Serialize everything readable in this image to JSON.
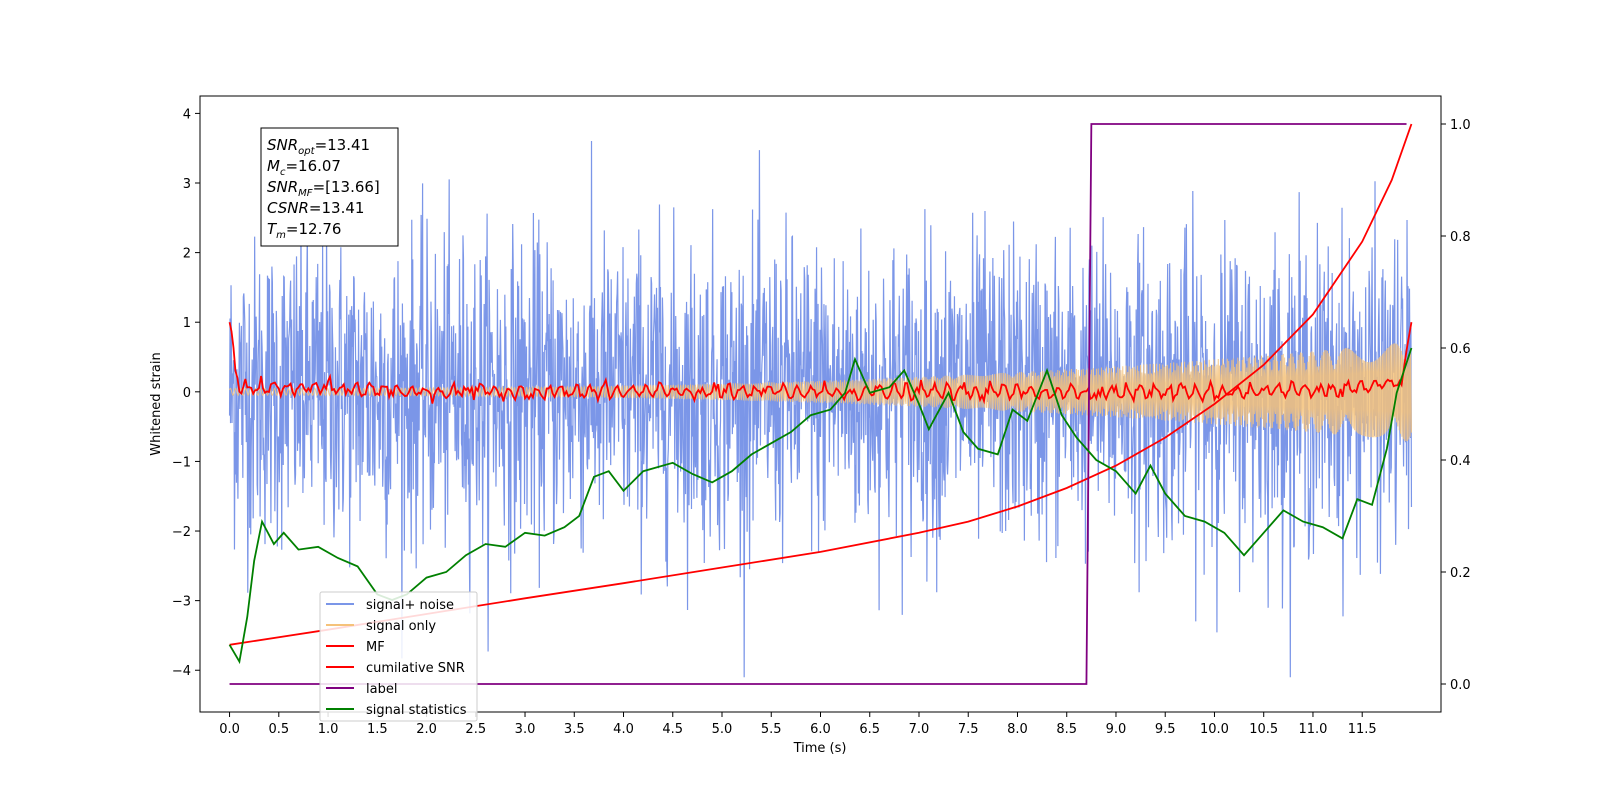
{
  "chart_data": {
    "type": "line",
    "xlabel": "Time (s)",
    "ylabel": "Whitened strain",
    "xlim": [
      -0.3,
      12.3
    ],
    "ylim": [
      -4.6,
      4.25
    ],
    "y2lim": [
      -0.05,
      1.05
    ],
    "x_ticks": [
      "0.0",
      "0.5",
      "1.0",
      "1.5",
      "2.0",
      "2.5",
      "3.0",
      "3.5",
      "4.0",
      "4.5",
      "5.0",
      "5.5",
      "6.0",
      "6.5",
      "7.0",
      "7.5",
      "8.0",
      "8.5",
      "9.0",
      "9.5",
      "10.0",
      "10.5",
      "11.0",
      "11.5"
    ],
    "y_ticks": [
      "4",
      "3",
      "2",
      "1",
      "0",
      "−1",
      "−2",
      "−3",
      "−4"
    ],
    "y2_ticks": [
      "1.0",
      "0.8",
      "0.6",
      "0.4",
      "0.2",
      "0.0"
    ],
    "annotations": [
      {
        "sym": "SNR",
        "sub": "opt",
        "val": "=13.41"
      },
      {
        "sym": "M",
        "sub": "c",
        "val": "=16.07"
      },
      {
        "sym": "SNR",
        "sub": "MF",
        "val": "=[13.66]"
      },
      {
        "sym": "CSNR",
        "sub": "",
        "val": "=13.41"
      },
      {
        "sym": "T",
        "sub": "m",
        "val": "=12.76"
      }
    ],
    "legend_position": "lower-left",
    "series": [
      {
        "name": "signal+ noise",
        "color": "#7b96e8",
        "axis": "left",
        "style": "noise",
        "amplitude": 1.1,
        "x_range": [
          0,
          12.0
        ]
      },
      {
        "name": "signal only",
        "color": "#f5c27a",
        "axis": "left",
        "style": "chirp",
        "amplitude_start": 0.05,
        "amplitude_end": 0.72,
        "x_range": [
          0,
          12.0
        ]
      },
      {
        "name": "MF",
        "color": "#ff0000",
        "axis": "left",
        "style": "matched-filter",
        "points": [
          [
            0.0,
            1.0
          ],
          [
            0.03,
            0.8
          ],
          [
            0.06,
            0.3
          ],
          [
            0.1,
            0.1
          ],
          [
            0.2,
            0.05
          ],
          [
            0.5,
            0.05
          ],
          [
            1.0,
            0.05
          ],
          [
            2.0,
            0.0
          ],
          [
            4.0,
            0.0
          ],
          [
            6.0,
            0.0
          ],
          [
            8.0,
            0.0
          ],
          [
            10.0,
            0.0
          ],
          [
            11.5,
            0.05
          ],
          [
            11.9,
            0.1
          ],
          [
            11.95,
            0.6
          ],
          [
            12.0,
            1.0
          ]
        ]
      },
      {
        "name": "cumilative SNR",
        "color": "#ff0000",
        "axis": "right",
        "points": [
          [
            0.0,
            0.07
          ],
          [
            1.0,
            0.097
          ],
          [
            2.0,
            0.125
          ],
          [
            3.0,
            0.153
          ],
          [
            4.0,
            0.18
          ],
          [
            5.0,
            0.208
          ],
          [
            6.0,
            0.236
          ],
          [
            7.0,
            0.27
          ],
          [
            7.5,
            0.29
          ],
          [
            8.0,
            0.317
          ],
          [
            8.5,
            0.35
          ],
          [
            9.0,
            0.39
          ],
          [
            9.5,
            0.44
          ],
          [
            10.0,
            0.5
          ],
          [
            10.5,
            0.57
          ],
          [
            11.0,
            0.66
          ],
          [
            11.5,
            0.79
          ],
          [
            11.8,
            0.9
          ],
          [
            12.0,
            1.0
          ]
        ]
      },
      {
        "name": "label",
        "color": "#800080",
        "axis": "right",
        "points": [
          [
            0.0,
            0.0
          ],
          [
            8.7,
            0.0
          ],
          [
            8.75,
            1.0
          ],
          [
            11.95,
            1.0
          ]
        ]
      },
      {
        "name": "signal statistics",
        "color": "#008000",
        "axis": "right",
        "points": [
          [
            0.0,
            0.07
          ],
          [
            0.1,
            0.04
          ],
          [
            0.18,
            0.12
          ],
          [
            0.25,
            0.22
          ],
          [
            0.33,
            0.29
          ],
          [
            0.45,
            0.25
          ],
          [
            0.55,
            0.27
          ],
          [
            0.7,
            0.24
          ],
          [
            0.9,
            0.245
          ],
          [
            1.1,
            0.225
          ],
          [
            1.3,
            0.21
          ],
          [
            1.5,
            0.16
          ],
          [
            1.65,
            0.15
          ],
          [
            1.8,
            0.16
          ],
          [
            2.0,
            0.19
          ],
          [
            2.2,
            0.2
          ],
          [
            2.4,
            0.23
          ],
          [
            2.6,
            0.25
          ],
          [
            2.8,
            0.245
          ],
          [
            3.0,
            0.27
          ],
          [
            3.2,
            0.265
          ],
          [
            3.4,
            0.28
          ],
          [
            3.55,
            0.3
          ],
          [
            3.7,
            0.37
          ],
          [
            3.85,
            0.38
          ],
          [
            4.0,
            0.345
          ],
          [
            4.2,
            0.38
          ],
          [
            4.5,
            0.395
          ],
          [
            4.7,
            0.375
          ],
          [
            4.9,
            0.36
          ],
          [
            5.1,
            0.38
          ],
          [
            5.3,
            0.41
          ],
          [
            5.5,
            0.43
          ],
          [
            5.7,
            0.45
          ],
          [
            5.9,
            0.48
          ],
          [
            6.1,
            0.49
          ],
          [
            6.25,
            0.52
          ],
          [
            6.35,
            0.58
          ],
          [
            6.5,
            0.52
          ],
          [
            6.7,
            0.53
          ],
          [
            6.85,
            0.56
          ],
          [
            7.0,
            0.5
          ],
          [
            7.1,
            0.455
          ],
          [
            7.3,
            0.52
          ],
          [
            7.45,
            0.45
          ],
          [
            7.6,
            0.42
          ],
          [
            7.8,
            0.41
          ],
          [
            7.95,
            0.49
          ],
          [
            8.1,
            0.47
          ],
          [
            8.3,
            0.56
          ],
          [
            8.45,
            0.48
          ],
          [
            8.6,
            0.44
          ],
          [
            8.8,
            0.4
          ],
          [
            9.0,
            0.38
          ],
          [
            9.2,
            0.34
          ],
          [
            9.35,
            0.39
          ],
          [
            9.5,
            0.34
          ],
          [
            9.7,
            0.3
          ],
          [
            9.9,
            0.29
          ],
          [
            10.1,
            0.27
          ],
          [
            10.3,
            0.23
          ],
          [
            10.5,
            0.27
          ],
          [
            10.7,
            0.31
          ],
          [
            10.9,
            0.29
          ],
          [
            11.1,
            0.28
          ],
          [
            11.3,
            0.26
          ],
          [
            11.45,
            0.33
          ],
          [
            11.6,
            0.32
          ],
          [
            11.75,
            0.42
          ],
          [
            11.85,
            0.52
          ],
          [
            12.0,
            0.6
          ]
        ]
      }
    ]
  }
}
